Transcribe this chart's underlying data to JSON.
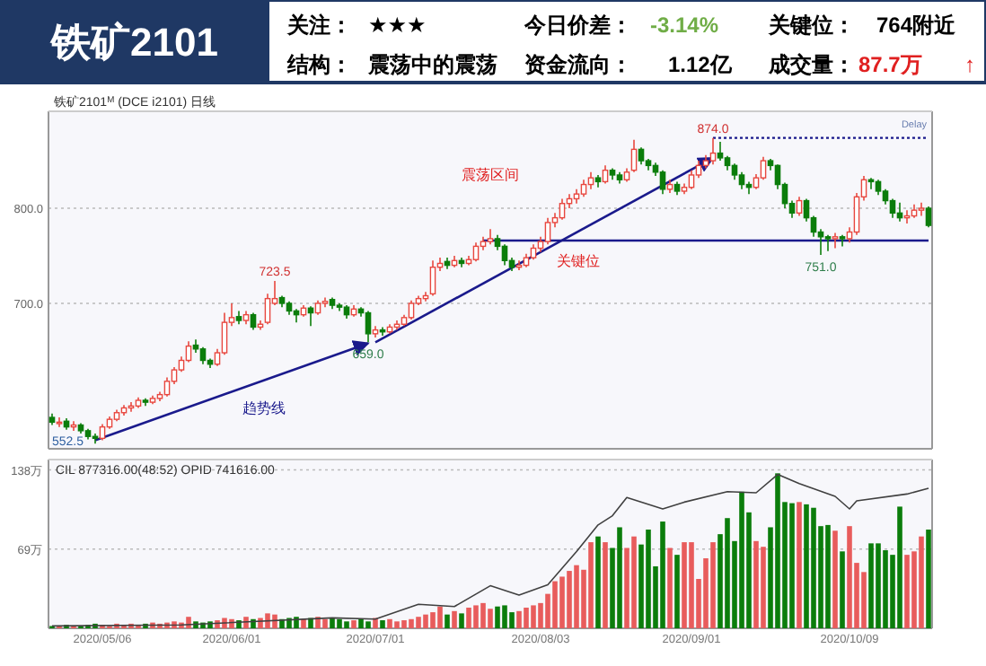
{
  "chart_data": [
    {
      "type": "other",
      "title": "铁矿2101",
      "annotations": [
        "关注：",
        "★★★",
        "今日价差：",
        "-3.14%",
        "关键位：",
        "764附近",
        "结构：",
        "震荡中的震荡",
        "资金流向：",
        "1.12亿",
        "成交量：",
        "87.7万",
        "↑"
      ]
    },
    {
      "type": "candlestick",
      "title": "铁矿2101$^{M}$ (DCE i2101)  日线",
      "tick_labels": "y",
      "grid": "y",
      "ylim": [
        547,
        902
      ],
      "yticks": [
        {
          "value": 700,
          "label": "700.0"
        },
        {
          "value": 800,
          "label": "800.0"
        }
      ],
      "categories": [
        null,
        null,
        null,
        null,
        null,
        null,
        null,
        null,
        null,
        null,
        null,
        null,
        null,
        null,
        null,
        null,
        null,
        null,
        null,
        null,
        null,
        null,
        null,
        null,
        null,
        null,
        null,
        null,
        null,
        null,
        null,
        null,
        null,
        null,
        null,
        null,
        null,
        null,
        null,
        null,
        null,
        null,
        null,
        null,
        null,
        null,
        null,
        null,
        null,
        null,
        null,
        null,
        null,
        null,
        null,
        null,
        null,
        null,
        null,
        null,
        null,
        null,
        null,
        null,
        null,
        null,
        null,
        null,
        null,
        null,
        null,
        null,
        null,
        null,
        null,
        null,
        null,
        null,
        null,
        null,
        null,
        null,
        null,
        null,
        null,
        null,
        null,
        null,
        null,
        null,
        null,
        null,
        null,
        null,
        null,
        null,
        null,
        null,
        null,
        null,
        null,
        null,
        null,
        null,
        null,
        null,
        null,
        null,
        null,
        null,
        null,
        null,
        null,
        null,
        null,
        null,
        null,
        null,
        null,
        null,
        null,
        null,
        null
      ],
      "ohlc": [
        [
          580,
          584,
          572,
          575
        ],
        [
          575,
          580,
          570,
          575
        ],
        [
          576,
          579,
          567,
          570
        ],
        [
          570,
          576,
          566,
          572
        ],
        [
          572,
          574,
          563,
          566
        ],
        [
          566,
          568,
          557,
          560
        ],
        [
          560,
          563,
          552.5,
          558
        ],
        [
          558,
          573,
          556,
          570
        ],
        [
          570,
          581,
          568,
          578
        ],
        [
          578,
          588,
          576,
          585
        ],
        [
          585,
          593,
          582,
          590
        ],
        [
          590,
          596,
          586,
          592
        ],
        [
          592,
          601,
          590,
          598
        ],
        [
          598,
          600,
          592,
          596
        ],
        [
          596,
          603,
          594,
          600
        ],
        [
          600,
          607,
          597,
          604
        ],
        [
          604,
          622,
          602,
          618
        ],
        [
          618,
          633,
          615,
          630
        ],
        [
          630,
          644,
          628,
          640
        ],
        [
          640,
          660,
          638,
          655
        ],
        [
          656,
          662,
          648,
          652
        ],
        [
          652,
          654,
          636,
          640
        ],
        [
          640,
          642,
          632,
          636
        ],
        [
          636,
          652,
          634,
          648
        ],
        [
          648,
          690,
          646,
          680
        ],
        [
          680,
          700,
          676,
          685
        ],
        [
          686,
          692,
          678,
          682
        ],
        [
          682,
          692,
          678,
          688
        ],
        [
          688,
          690,
          672,
          675
        ],
        [
          675,
          682,
          672,
          678
        ],
        [
          680,
          710,
          678,
          705
        ],
        [
          700,
          723.5,
          698,
          705
        ],
        [
          706,
          708,
          696,
          700
        ],
        [
          700,
          702,
          688,
          692
        ],
        [
          692,
          694,
          680,
          688
        ],
        [
          688,
          698,
          686,
          695
        ],
        [
          695,
          697,
          676,
          690
        ],
        [
          690,
          703,
          688,
          700
        ],
        [
          700,
          706,
          696,
          702
        ],
        [
          704,
          706,
          694,
          698
        ],
        [
          698,
          700,
          692,
          696
        ],
        [
          696,
          698,
          684,
          688
        ],
        [
          688,
          698,
          686,
          694
        ],
        [
          694,
          696,
          686,
          690
        ],
        [
          690,
          692,
          659,
          668
        ],
        [
          668,
          676,
          664,
          672
        ],
        [
          672,
          675,
          666,
          670
        ],
        [
          670,
          678,
          668,
          675
        ],
        [
          675,
          682,
          672,
          678
        ],
        [
          678,
          688,
          676,
          685
        ],
        [
          685,
          703,
          683,
          700
        ],
        [
          700,
          708,
          698,
          705
        ],
        [
          705,
          712,
          702,
          708
        ],
        [
          710,
          745,
          708,
          738
        ],
        [
          738,
          748,
          734,
          742
        ],
        [
          744,
          748,
          736,
          740
        ],
        [
          740,
          750,
          738,
          745
        ],
        [
          745,
          748,
          738,
          742
        ],
        [
          742,
          750,
          740,
          746
        ],
        [
          746,
          764,
          744,
          760
        ],
        [
          760,
          770,
          756,
          765
        ],
        [
          765,
          778,
          762,
          768
        ],
        [
          768,
          772,
          756,
          760
        ],
        [
          760,
          762,
          740,
          745
        ],
        [
          745,
          748,
          734,
          738
        ],
        [
          738,
          745,
          735,
          740
        ],
        [
          740,
          752,
          738,
          748
        ],
        [
          748,
          762,
          746,
          758
        ],
        [
          758,
          770,
          754,
          765
        ],
        [
          765,
          790,
          762,
          785
        ],
        [
          785,
          795,
          780,
          790
        ],
        [
          790,
          810,
          788,
          805
        ],
        [
          805,
          815,
          800,
          810
        ],
        [
          810,
          820,
          805,
          815
        ],
        [
          815,
          830,
          812,
          825
        ],
        [
          825,
          838,
          820,
          832
        ],
        [
          832,
          835,
          822,
          828
        ],
        [
          828,
          845,
          826,
          840
        ],
        [
          840,
          842,
          830,
          835
        ],
        [
          835,
          838,
          826,
          830
        ],
        [
          830,
          842,
          828,
          838
        ],
        [
          840,
          872,
          838,
          862
        ],
        [
          862,
          864,
          846,
          850
        ],
        [
          850,
          852,
          840,
          845
        ],
        [
          845,
          848,
          834,
          838
        ],
        [
          838,
          840,
          815,
          820
        ],
        [
          820,
          830,
          816,
          825
        ],
        [
          825,
          828,
          814,
          818
        ],
        [
          818,
          826,
          815,
          822
        ],
        [
          822,
          840,
          820,
          835
        ],
        [
          835,
          850,
          832,
          845
        ],
        [
          845,
          856,
          842,
          850
        ],
        [
          850,
          874,
          846,
          858
        ],
        [
          858,
          870,
          850,
          853
        ],
        [
          853,
          855,
          840,
          845
        ],
        [
          845,
          847,
          830,
          835
        ],
        [
          835,
          838,
          820,
          825
        ],
        [
          825,
          828,
          815,
          822
        ],
        [
          822,
          836,
          820,
          832
        ],
        [
          832,
          854,
          830,
          850
        ],
        [
          850,
          852,
          840,
          845
        ],
        [
          845,
          846,
          820,
          825
        ],
        [
          825,
          827,
          800,
          805
        ],
        [
          805,
          808,
          790,
          795
        ],
        [
          795,
          812,
          792,
          808
        ],
        [
          808,
          810,
          786,
          790
        ],
        [
          790,
          792,
          770,
          775
        ],
        [
          775,
          778,
          751,
          770
        ],
        [
          770,
          772,
          755,
          768
        ],
        [
          768,
          774,
          758,
          770
        ],
        [
          770,
          772,
          760,
          768
        ],
        [
          768,
          780,
          764,
          775
        ],
        [
          775,
          816,
          772,
          812
        ],
        [
          812,
          834,
          808,
          830
        ],
        [
          830,
          832,
          820,
          828
        ],
        [
          828,
          830,
          814,
          818
        ],
        [
          818,
          820,
          804,
          808
        ],
        [
          808,
          810,
          790,
          795
        ],
        [
          795,
          806,
          786,
          790
        ],
        [
          790,
          798,
          784,
          792
        ],
        [
          792,
          804,
          790,
          798
        ],
        [
          798,
          806,
          792,
          800
        ],
        [
          800,
          802,
          780,
          782
        ]
      ],
      "series": [
        {
          "type": "line",
          "name": "趋势线",
          "color": "#1a1a8c",
          "values": [
            null,
            null,
            null,
            null,
            null,
            null,
            556,
            null,
            null,
            null,
            null,
            null,
            null,
            null,
            null,
            null,
            null,
            null,
            null,
            null,
            null,
            null,
            null,
            null,
            null,
            null,
            null,
            null,
            null,
            null,
            null,
            null,
            null,
            null,
            null,
            null,
            null,
            null,
            null,
            null,
            null,
            null,
            null,
            null,
            658,
            null,
            null,
            null,
            null,
            null,
            null,
            null,
            null,
            null,
            null,
            null,
            null,
            null,
            null,
            null,
            null,
            null,
            null,
            null,
            null,
            null,
            null,
            null,
            null,
            null,
            null,
            null,
            null,
            null,
            null,
            null,
            null,
            null,
            null,
            null,
            null,
            null,
            null,
            null,
            null,
            null,
            null,
            null,
            null,
            null,
            null,
            null,
            null,
            null,
            null,
            null,
            null,
            null,
            null,
            null,
            null,
            null,
            null,
            null,
            null,
            null,
            null,
            null,
            null,
            null,
            null,
            null,
            null,
            null,
            null,
            null,
            null,
            null,
            null,
            null,
            null,
            null,
            null
          ]
        },
        {
          "type": "line",
          "color": "#1a1a8c",
          "values": [
            null,
            null,
            null,
            null,
            null,
            null,
            null,
            null,
            null,
            null,
            null,
            null,
            null,
            null,
            null,
            null,
            null,
            null,
            null,
            null,
            null,
            null,
            null,
            null,
            null,
            null,
            null,
            null,
            null,
            null,
            null,
            null,
            null,
            null,
            null,
            null,
            null,
            null,
            null,
            null,
            null,
            null,
            null,
            null,
            null,
            659,
            null,
            null,
            null,
            null,
            null,
            null,
            null,
            null,
            null,
            null,
            null,
            null,
            null,
            null,
            null,
            null,
            null,
            null,
            null,
            null,
            null,
            null,
            null,
            null,
            null,
            null,
            null,
            null,
            null,
            null,
            null,
            null,
            null,
            null,
            null,
            null,
            null,
            null,
            null,
            null,
            null,
            null,
            null,
            null,
            null,
            null,
            853,
            null,
            null,
            null,
            null,
            null,
            null,
            null,
            null,
            null,
            null,
            null,
            null,
            null,
            null,
            null,
            null,
            null,
            null,
            null,
            null,
            null,
            null,
            null,
            null,
            null,
            null,
            null,
            null,
            null,
            null
          ]
        }
      ],
      "ref_lines": [
        {
          "axis": "y",
          "value": 766,
          "label": "关键位",
          "color": "#1a1a8c",
          "line_style": "solid"
        },
        {
          "axis": "y",
          "value": 874,
          "color": "#1a1a8c",
          "line_style": "dotted"
        }
      ],
      "annotations": [
        "震荡区间",
        {
          "text": "723.5",
          "y": 723.5
        },
        {
          "text": "874.0",
          "y": 874
        },
        {
          "text": "751.0",
          "y": 751
        },
        {
          "text": "659.0",
          "y": 659
        },
        "552.5",
        "Delay"
      ]
    },
    {
      "type": "bar",
      "title": "CIL  877316.00(48:52)  OPID 741616.00",
      "grid": "y",
      "ylim": [
        0,
        147
      ],
      "yticks": [
        {
          "value": 69,
          "label": "69万"
        },
        {
          "value": 138,
          "label": "138万"
        }
      ],
      "categories": [
        null,
        null,
        null,
        null,
        null,
        null,
        null,
        "2020/05/06",
        null,
        null,
        null,
        null,
        null,
        null,
        null,
        null,
        null,
        null,
        null,
        null,
        null,
        null,
        null,
        null,
        null,
        "2020/06/01",
        null,
        null,
        null,
        null,
        null,
        null,
        null,
        null,
        null,
        null,
        null,
        null,
        null,
        null,
        null,
        null,
        null,
        null,
        null,
        "2020/07/01",
        null,
        null,
        null,
        null,
        null,
        null,
        null,
        null,
        null,
        null,
        null,
        null,
        null,
        null,
        null,
        null,
        null,
        null,
        null,
        null,
        null,
        null,
        "2020/08/03",
        null,
        null,
        null,
        null,
        null,
        null,
        null,
        null,
        null,
        null,
        null,
        null,
        null,
        null,
        null,
        null,
        null,
        null,
        null,
        null,
        "2020/09/01",
        null,
        null,
        null,
        null,
        null,
        null,
        null,
        null,
        null,
        null,
        null,
        null,
        null,
        null,
        null,
        null,
        null,
        null,
        null,
        null,
        null,
        "2020/10/09",
        null,
        null,
        null,
        null,
        null,
        null,
        null,
        null,
        null,
        null,
        null
      ],
      "series": [
        {
          "type": "bar",
          "values": [
            2,
            2,
            3,
            2,
            2,
            3,
            4,
            3,
            2,
            4,
            3,
            4,
            3,
            4,
            5,
            4,
            5,
            6,
            5,
            10,
            6,
            5,
            6,
            7,
            9,
            8,
            7,
            10,
            8,
            9,
            13,
            12,
            8,
            9,
            10,
            8,
            9,
            10,
            8,
            9,
            8,
            6,
            7,
            8,
            6,
            9,
            7,
            8,
            6,
            7,
            8,
            10,
            12,
            14,
            19,
            12,
            15,
            13,
            18,
            20,
            22,
            17,
            19,
            20,
            14,
            15,
            18,
            20,
            22,
            30,
            41,
            45,
            50,
            55,
            51,
            75,
            80,
            75,
            70,
            88,
            70,
            80,
            73,
            86,
            54,
            93,
            70,
            64,
            75,
            75,
            43,
            61,
            75,
            82,
            96,
            76,
            119,
            101,
            76,
            71,
            88,
            135,
            110,
            109,
            110,
            108,
            105,
            89,
            90,
            85,
            67,
            89,
            57,
            49,
            74,
            74,
            68,
            64,
            106,
            64,
            67,
            80,
            86
          ],
          "colors": [
            "#0b7d0b",
            "#e85c5c",
            "#0b7d0b",
            "#e85c5c",
            "#0b7d0b",
            "#0b7d0b",
            "#0b7d0b",
            "#e85c5c",
            "#e85c5c",
            "#e85c5c",
            "#e85c5c",
            "#e85c5c",
            "#e85c5c",
            "#0b7d0b",
            "#e85c5c",
            "#e85c5c",
            "#e85c5c",
            "#e85c5c",
            "#e85c5c",
            "#e85c5c",
            "#0b7d0b",
            "#0b7d0b",
            "#0b7d0b",
            "#e85c5c",
            "#e85c5c",
            "#e85c5c",
            "#0b7d0b",
            "#e85c5c",
            "#0b7d0b",
            "#e85c5c",
            "#e85c5c",
            "#e85c5c",
            "#0b7d0b",
            "#0b7d0b",
            "#0b7d0b",
            "#e85c5c",
            "#0b7d0b",
            "#e85c5c",
            "#e85c5c",
            "#0b7d0b",
            "#0b7d0b",
            "#0b7d0b",
            "#e85c5c",
            "#0b7d0b",
            "#0b7d0b",
            "#e85c5c",
            "#0b7d0b",
            "#e85c5c",
            "#e85c5c",
            "#e85c5c",
            "#e85c5c",
            "#e85c5c",
            "#e85c5c",
            "#e85c5c",
            "#e85c5c",
            "#0b7d0b",
            "#e85c5c",
            "#0b7d0b",
            "#e85c5c",
            "#e85c5c",
            "#e85c5c",
            "#e85c5c",
            "#0b7d0b",
            "#0b7d0b",
            "#0b7d0b",
            "#e85c5c",
            "#e85c5c",
            "#e85c5c",
            "#e85c5c",
            "#e85c5c",
            "#e85c5c",
            "#e85c5c",
            "#e85c5c",
            "#e85c5c",
            "#e85c5c",
            "#e85c5c",
            "#0b7d0b",
            "#e85c5c",
            "#0b7d0b",
            "#0b7d0b",
            "#e85c5c",
            "#e85c5c",
            "#0b7d0b",
            "#0b7d0b",
            "#0b7d0b",
            "#0b7d0b",
            "#e85c5c",
            "#0b7d0b",
            "#e85c5c",
            "#e85c5c",
            "#e85c5c",
            "#e85c5c",
            "#e85c5c",
            "#0b7d0b",
            "#0b7d0b",
            "#0b7d0b",
            "#0b7d0b",
            "#0b7d0b",
            "#e85c5c",
            "#e85c5c",
            "#0b7d0b",
            "#0b7d0b",
            "#0b7d0b",
            "#0b7d0b",
            "#e85c5c",
            "#0b7d0b",
            "#0b7d0b",
            "#0b7d0b",
            "#0b7d0b",
            "#e85c5c",
            "#0b7d0b",
            "#e85c5c",
            "#e85c5c",
            "#e85c5c",
            "#0b7d0b",
            "#0b7d0b",
            "#0b7d0b",
            "#0b7d0b",
            "#0b7d0b",
            "#e85c5c",
            "#e85c5c",
            "#e85c5c",
            "#0b7d0b"
          ]
        },
        {
          "type": "line",
          "color": "#404040",
          "values": [
            2,
            null,
            null,
            null,
            null,
            null,
            null,
            null,
            null,
            null,
            null,
            null,
            null,
            null,
            null,
            null,
            null,
            null,
            3,
            null,
            null,
            null,
            null,
            null,
            null,
            null,
            null,
            null,
            null,
            null,
            null,
            null,
            null,
            null,
            null,
            null,
            null,
            null,
            null,
            9,
            null,
            null,
            null,
            null,
            null,
            8,
            null,
            null,
            null,
            null,
            null,
            21,
            null,
            null,
            null,
            null,
            19,
            null,
            null,
            null,
            null,
            37,
            null,
            null,
            null,
            29,
            null,
            null,
            null,
            38,
            null,
            null,
            null,
            67,
            null,
            null,
            90,
            null,
            98,
            null,
            114,
            null,
            null,
            null,
            null,
            104,
            null,
            null,
            110,
            null,
            null,
            null,
            null,
            null,
            119,
            null,
            null,
            null,
            118,
            null,
            null,
            134,
            null,
            null,
            126,
            null,
            null,
            null,
            null,
            115,
            null,
            104,
            111,
            null,
            null,
            null,
            null,
            null,
            null,
            117,
            null,
            null,
            122
          ]
        }
      ]
    }
  ]
}
